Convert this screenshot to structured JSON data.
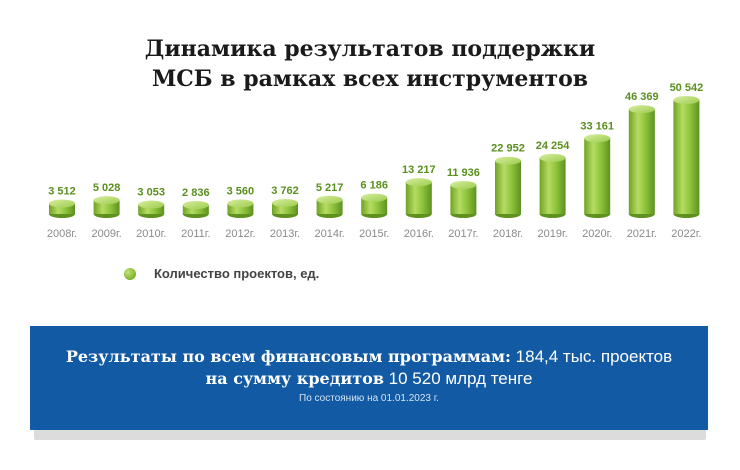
{
  "title": {
    "line1": "Динамика результатов поддержки",
    "line2": "МСБ в рамках всех инструментов"
  },
  "legend": {
    "label": "Количество проектов, ед."
  },
  "colors": {
    "bar": "#7cb22c",
    "bar_light": "#c6e27c",
    "label": "#5a8f1e",
    "tick": "#8a8a8a",
    "banner": "#125aa3"
  },
  "chart_data": {
    "type": "bar",
    "title": "Динамика результатов поддержки МСБ в рамках всех инструментов",
    "categories": [
      "2008г.",
      "2009г.",
      "2010г.",
      "2011г.",
      "2012г.",
      "2013г.",
      "2014г.",
      "2015г.",
      "2016г.",
      "2017г.",
      "2018г.",
      "2019г.",
      "2020г.",
      "2021г.",
      "2022г."
    ],
    "series": [
      {
        "name": "Количество проектов, ед.",
        "values": [
          3512,
          5028,
          3053,
          2836,
          3560,
          3762,
          5217,
          6186,
          13217,
          11936,
          22952,
          24254,
          33161,
          46369,
          50542
        ],
        "labels": [
          "3 512",
          "5 028",
          "3 053",
          "2 836",
          "3 560",
          "3 762",
          "5 217",
          "6 186",
          "13 217",
          "11 936",
          "22 952",
          "24 254",
          "33 161",
          "46 369",
          "50 542"
        ]
      }
    ],
    "ylim": [
      0,
      55000
    ],
    "grid": false,
    "legend_position": "bottom-left"
  },
  "banner": {
    "line1_bold": "Результаты по всем финансовым программам:",
    "line1_rest": " 184,4 тыс. проектов",
    "line2_bold": "на сумму кредитов",
    "line2_rest": " 10 520 млрд тенге",
    "note": "По состоянию на 01.01.2023 г."
  }
}
